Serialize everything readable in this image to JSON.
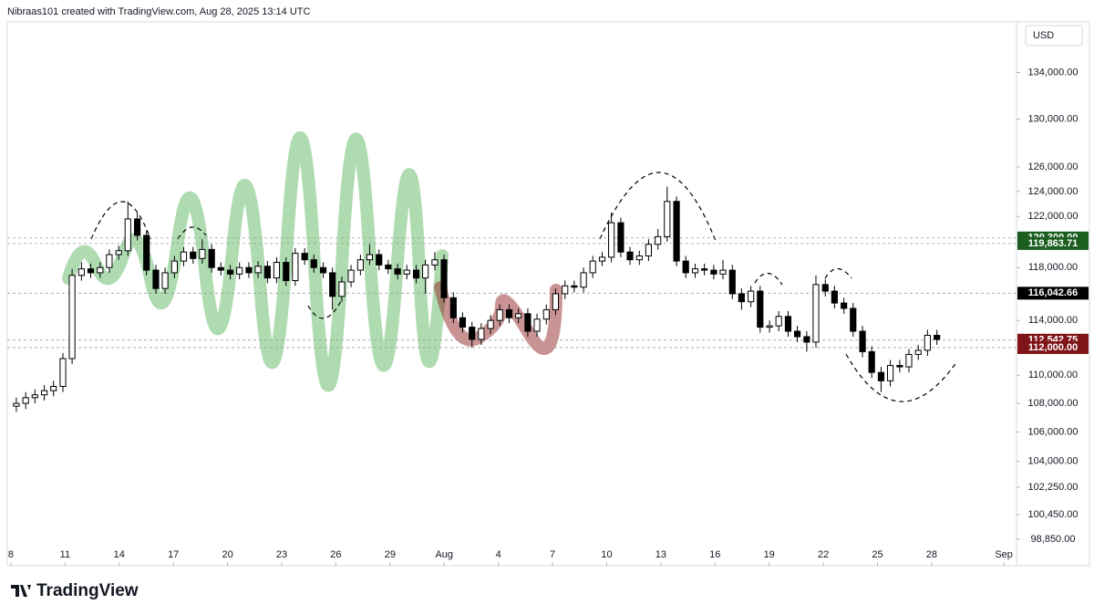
{
  "chart_data": {
    "type": "candlestick",
    "header": "Nibraas101 created with TradingView.com, Aug 28, 2025 13:14 UTC",
    "currency": "USD",
    "logo": "TradingView",
    "log_scale": true,
    "up_color": "#ffffff",
    "down_color": "#000000",
    "wick_color": "#000000",
    "xlim": [
      -0.2,
      55.7
    ],
    "ylim": [
      97150,
      138500
    ],
    "xticks": [
      {
        "value": 0,
        "label": "8"
      },
      {
        "value": 3,
        "label": "11"
      },
      {
        "value": 6,
        "label": "14"
      },
      {
        "value": 9,
        "label": "17"
      },
      {
        "value": 12,
        "label": "20"
      },
      {
        "value": 15,
        "label": "23"
      },
      {
        "value": 18,
        "label": "26"
      },
      {
        "value": 21,
        "label": "29"
      },
      {
        "value": 24,
        "label": "Aug"
      },
      {
        "value": 27,
        "label": "4"
      },
      {
        "value": 30,
        "label": "7"
      },
      {
        "value": 33,
        "label": "10"
      },
      {
        "value": 36,
        "label": "13"
      },
      {
        "value": 39,
        "label": "16"
      },
      {
        "value": 42,
        "label": "19"
      },
      {
        "value": 45,
        "label": "22"
      },
      {
        "value": 48,
        "label": "25"
      },
      {
        "value": 51,
        "label": "28"
      },
      {
        "value": 55,
        "label": "Sep"
      }
    ],
    "yticks": [
      {
        "value": 134000,
        "label": "134,000.00"
      },
      {
        "value": 130000,
        "label": "130,000.00"
      },
      {
        "value": 126000,
        "label": "126,000.00"
      },
      {
        "value": 124000,
        "label": "124,000.00"
      },
      {
        "value": 122000,
        "label": "122,000.00"
      },
      {
        "value": 118000,
        "label": "118,000.00"
      },
      {
        "value": 114000,
        "label": "114,000.00"
      },
      {
        "value": 110000,
        "label": "110,000.00"
      },
      {
        "value": 108000,
        "label": "108,000.00"
      },
      {
        "value": 106000,
        "label": "106,000.00"
      },
      {
        "value": 104000,
        "label": "104,000.00"
      },
      {
        "value": 102250,
        "label": "102,250.00"
      },
      {
        "value": 100450,
        "label": "100,450.00"
      },
      {
        "value": 98850,
        "label": "98,850.00"
      }
    ],
    "price_labels": [
      {
        "value": 120300,
        "label": "120,300.00",
        "color": "#1b5e20"
      },
      {
        "value": 119863.71,
        "label": "119,863.71",
        "color": "#1b5e20"
      },
      {
        "value": 116042.66,
        "label": "116,042.66",
        "color": "#000000"
      },
      {
        "value": 112542.75,
        "label": "112,542.75",
        "color": "#7f1418"
      },
      {
        "value": 112000,
        "label": "112,000.00",
        "color": "#7f1418"
      }
    ],
    "x": [
      0.3,
      0.82,
      1.33,
      1.85,
      2.36,
      2.88,
      3.39,
      3.91,
      4.42,
      4.94,
      5.45,
      5.97,
      6.48,
      7.0,
      7.51,
      8.03,
      8.54,
      9.06,
      9.57,
      10.09,
      10.6,
      11.12,
      11.63,
      12.15,
      12.66,
      13.18,
      13.69,
      14.21,
      14.72,
      15.24,
      15.75,
      16.27,
      16.78,
      17.3,
      17.81,
      18.33,
      18.84,
      19.36,
      19.87,
      20.39,
      20.9,
      21.42,
      21.93,
      22.45,
      22.96,
      23.48,
      23.99,
      24.51,
      25.02,
      25.54,
      26.05,
      26.57,
      27.08,
      27.6,
      28.11,
      28.63,
      29.14,
      29.66,
      30.17,
      30.69,
      31.2,
      31.72,
      32.23,
      32.75,
      33.26,
      33.78,
      34.29,
      34.81,
      35.32,
      35.84,
      36.35,
      36.87,
      37.38,
      37.9,
      38.41,
      38.93,
      39.44,
      39.96,
      40.47,
      40.99,
      41.5,
      42.02,
      42.53,
      43.05,
      43.56,
      44.08,
      44.59,
      45.11,
      45.62,
      46.14,
      46.65,
      47.17,
      47.68,
      48.2,
      48.71,
      49.23,
      49.74,
      50.26,
      50.77,
      51.29
    ],
    "open": [
      107800,
      108000,
      108400,
      108600,
      108900,
      109200,
      111200,
      117400,
      117900,
      117600,
      118000,
      119000,
      119300,
      121800,
      120500,
      117800,
      116400,
      117600,
      118500,
      119200,
      118700,
      119400,
      118000,
      117800,
      117500,
      118000,
      117600,
      118100,
      117200,
      118400,
      117000,
      119100,
      118600,
      118000,
      117600,
      115800,
      116900,
      117800,
      118600,
      119000,
      118200,
      117900,
      117500,
      117800,
      117200,
      118200,
      118600,
      115700,
      114200,
      113500,
      112600,
      113400,
      114000,
      114800,
      114200,
      114500,
      113200,
      114100,
      114800,
      116000,
      116600,
      116500,
      117600,
      118500,
      118800,
      121500,
      119200,
      118600,
      118900,
      119800,
      120400,
      123200,
      118500,
      117600,
      117900,
      117800,
      117500,
      117800,
      116000,
      115400,
      116200,
      113500,
      113600,
      114300,
      113200,
      112800,
      112400,
      116700,
      116200,
      115300,
      114900,
      113200,
      111700,
      110200,
      109600,
      110700,
      110600,
      111500,
      111800,
      112900
    ],
    "high": [
      108400,
      108800,
      109000,
      109300,
      109600,
      111600,
      117900,
      118400,
      118300,
      118400,
      119400,
      119700,
      123200,
      122300,
      120900,
      118200,
      118000,
      118900,
      119600,
      119600,
      120200,
      119800,
      118400,
      118200,
      118400,
      118400,
      118500,
      118500,
      118800,
      118800,
      119500,
      119500,
      119000,
      118400,
      118000,
      117300,
      118200,
      119000,
      119800,
      119400,
      118600,
      118300,
      118200,
      118200,
      118600,
      119200,
      119000,
      116100,
      114600,
      113900,
      113800,
      114400,
      115200,
      115200,
      114900,
      114900,
      114500,
      115200,
      116400,
      117000,
      117000,
      118000,
      118900,
      119200,
      122300,
      121900,
      119600,
      119300,
      120200,
      121000,
      124400,
      123600,
      118900,
      118300,
      118300,
      118200,
      118600,
      118200,
      116400,
      116600,
      116600,
      114000,
      114700,
      114700,
      113600,
      113200,
      117400,
      117100,
      116600,
      115700,
      115300,
      113600,
      112100,
      110600,
      111100,
      111100,
      111900,
      112200,
      113300,
      113300
    ],
    "low": [
      107400,
      107600,
      108000,
      108200,
      108500,
      108800,
      110800,
      117000,
      117200,
      117200,
      117600,
      118600,
      118900,
      120100,
      117400,
      116000,
      116000,
      117200,
      118100,
      118300,
      118300,
      117600,
      117400,
      117100,
      117100,
      117200,
      117200,
      116800,
      116800,
      116600,
      116600,
      118200,
      117600,
      117200,
      114800,
      115400,
      116500,
      117400,
      118200,
      117800,
      117500,
      117100,
      117100,
      116800,
      116000,
      117800,
      115300,
      113800,
      113100,
      112000,
      112200,
      113000,
      113600,
      113800,
      113800,
      112800,
      112800,
      113700,
      114400,
      115600,
      116100,
      116100,
      117200,
      118100,
      118400,
      118800,
      118200,
      118200,
      118500,
      119400,
      120000,
      118100,
      117200,
      117200,
      117400,
      117100,
      117100,
      115600,
      114800,
      115000,
      113100,
      113100,
      113200,
      112800,
      112400,
      111700,
      112000,
      115800,
      114900,
      114500,
      112800,
      111300,
      109800,
      108800,
      109200,
      110200,
      110200,
      111100,
      111400,
      112200
    ],
    "close": [
      108000,
      108400,
      108600,
      108900,
      109200,
      111200,
      117400,
      117900,
      117600,
      118000,
      119000,
      119300,
      121800,
      120500,
      117800,
      116400,
      117600,
      118500,
      119200,
      118700,
      119400,
      118000,
      117800,
      117500,
      118000,
      117600,
      118100,
      117200,
      118400,
      117000,
      119100,
      118600,
      118000,
      117600,
      115800,
      116900,
      117800,
      118600,
      119000,
      118200,
      117900,
      117500,
      117800,
      117200,
      118200,
      118600,
      115700,
      114200,
      113500,
      112600,
      113400,
      114000,
      114800,
      114200,
      114500,
      113200,
      114100,
      114800,
      116000,
      116600,
      116500,
      117600,
      118500,
      118800,
      121500,
      119200,
      118600,
      118900,
      119800,
      120400,
      123200,
      118500,
      117600,
      117900,
      117800,
      117500,
      117800,
      116000,
      115400,
      116200,
      113500,
      113600,
      114300,
      113200,
      112800,
      112400,
      116700,
      116200,
      115300,
      114900,
      113200,
      111700,
      110200,
      109600,
      110700,
      110600,
      111500,
      111800,
      112900,
      112600
    ]
  }
}
